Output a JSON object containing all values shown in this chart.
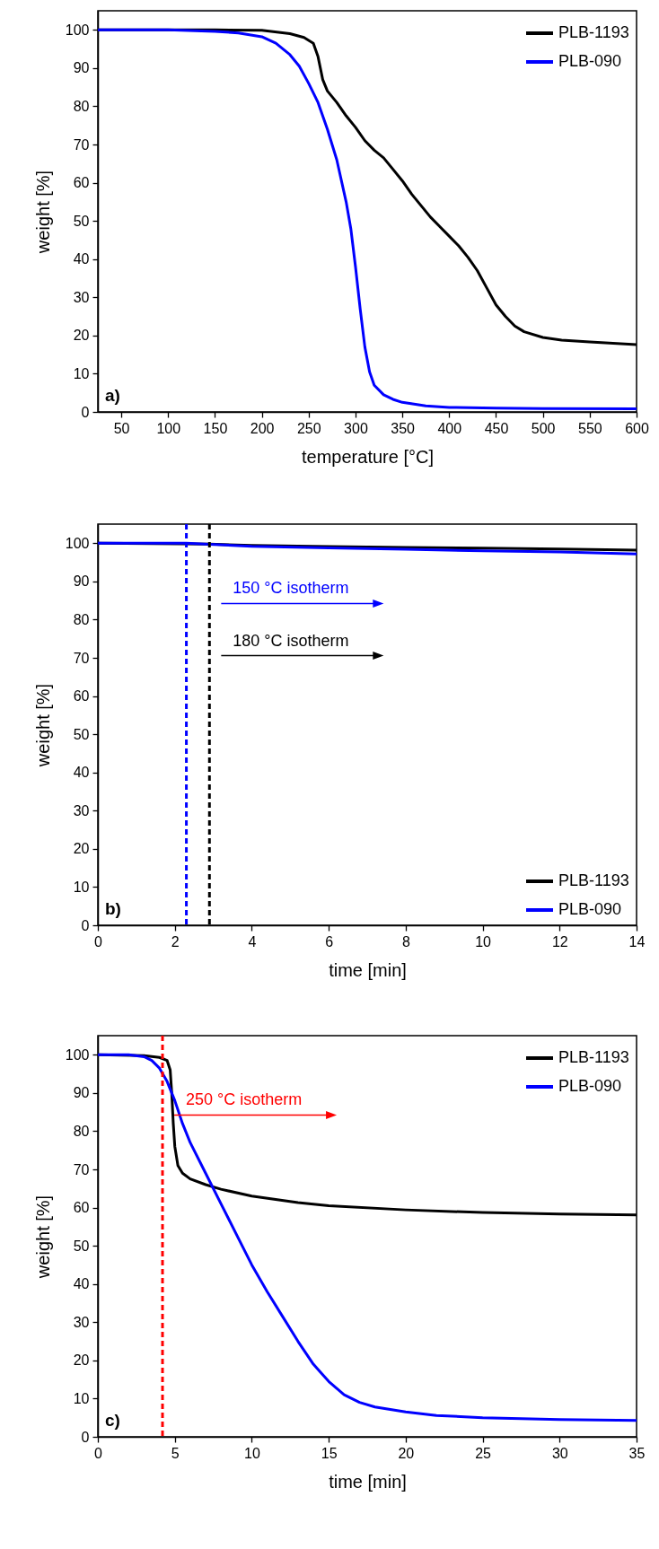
{
  "chart_data": [
    {
      "type": "line",
      "xlabel": "temperature [°C]",
      "ylabel": "weight [%]",
      "xlim": [
        25,
        600
      ],
      "ylim": [
        0,
        105
      ],
      "xticks": [
        50,
        100,
        150,
        200,
        250,
        300,
        350,
        400,
        450,
        500,
        550,
        600
      ],
      "yticks": [
        0,
        10,
        20,
        30,
        40,
        50,
        60,
        70,
        80,
        90,
        100
      ],
      "legend": "top right",
      "annotations": [
        "a)"
      ],
      "series": [
        {
          "name": "PLB-1193",
          "color": "#000000",
          "x": [
            25,
            150,
            200,
            230,
            245,
            255,
            260,
            265,
            270,
            280,
            290,
            300,
            310,
            320,
            330,
            340,
            350,
            360,
            370,
            380,
            390,
            400,
            410,
            420,
            430,
            440,
            450,
            460,
            470,
            480,
            500,
            520,
            550,
            600
          ],
          "values": [
            100,
            100,
            99.9,
            99,
            98,
            96.5,
            93,
            87,
            84,
            81,
            77.5,
            74.5,
            71,
            68.5,
            66.5,
            63.5,
            60.5,
            57,
            54,
            51,
            48.5,
            46,
            43.5,
            40.5,
            37,
            32.5,
            28,
            25,
            22.5,
            21,
            19.5,
            18.8,
            18.3,
            17.6
          ]
        },
        {
          "name": "PLB-090",
          "color": "#0000ff",
          "x": [
            25,
            100,
            150,
            175,
            200,
            215,
            230,
            240,
            250,
            260,
            270,
            280,
            290,
            295,
            300,
            305,
            310,
            315,
            320,
            330,
            340,
            350,
            375,
            400,
            450,
            500,
            600
          ],
          "values": [
            100,
            100,
            99.6,
            99.2,
            98.2,
            96.5,
            93.5,
            90.5,
            86,
            81,
            74,
            66,
            55,
            48,
            38,
            27,
            17,
            10.5,
            7,
            4.5,
            3.3,
            2.5,
            1.6,
            1.2,
            1,
            0.9,
            0.8
          ]
        }
      ]
    },
    {
      "type": "line",
      "xlabel": "time [min]",
      "ylabel": "weight [%]",
      "xlim": [
        0,
        14
      ],
      "ylim": [
        0,
        105
      ],
      "xticks": [
        0,
        2,
        4,
        6,
        8,
        10,
        12,
        14
      ],
      "yticks": [
        0,
        10,
        20,
        30,
        40,
        50,
        60,
        70,
        80,
        90,
        100
      ],
      "legend": "bottom right",
      "annotations": [
        "b)"
      ],
      "ref_lines": [
        {
          "axis": "x",
          "value": 2.3,
          "label": "150 °C isotherm",
          "color": "#0000ff",
          "line_style": "dashed"
        },
        {
          "axis": "x",
          "value": 2.9,
          "label": "180 °C isotherm",
          "color": "#000000",
          "line_style": "dashed"
        }
      ],
      "series": [
        {
          "name": "PLB-1193",
          "color": "#000000",
          "x": [
            0,
            2.9,
            4,
            6,
            8,
            10,
            12,
            14
          ],
          "values": [
            100,
            99.8,
            99.4,
            99.1,
            98.9,
            98.7,
            98.5,
            98.2
          ]
        },
        {
          "name": "PLB-090",
          "color": "#0000ff",
          "x": [
            0,
            2.3,
            2.9,
            4,
            6,
            8,
            10,
            12,
            14
          ],
          "values": [
            100,
            100,
            99.7,
            99.2,
            98.8,
            98.4,
            98,
            97.7,
            97.2
          ]
        }
      ]
    },
    {
      "type": "line",
      "xlabel": "time [min]",
      "ylabel": "weight [%]",
      "xlim": [
        0,
        35
      ],
      "ylim": [
        0,
        105
      ],
      "xticks": [
        0,
        5,
        10,
        15,
        20,
        25,
        30,
        35
      ],
      "yticks": [
        0,
        10,
        20,
        30,
        40,
        50,
        60,
        70,
        80,
        90,
        100
      ],
      "legend": "top right",
      "annotations": [
        "c)"
      ],
      "ref_lines": [
        {
          "axis": "x",
          "value": 4.2,
          "label": "250 °C isotherm",
          "color": "#ff0000",
          "line_style": "dashed"
        }
      ],
      "series": [
        {
          "name": "PLB-1193",
          "color": "#000000",
          "x": [
            0,
            3,
            4,
            4.5,
            4.7,
            4.8,
            4.9,
            5,
            5.2,
            5.5,
            6,
            7,
            8,
            10,
            13,
            15,
            20,
            25,
            30,
            35
          ],
          "values": [
            100,
            99.8,
            99.3,
            98.5,
            96,
            90,
            82,
            76,
            71,
            69,
            67.5,
            66,
            64.8,
            63,
            61.3,
            60.5,
            59.4,
            58.7,
            58.3,
            58.1
          ]
        },
        {
          "name": "PLB-090",
          "color": "#0000ff",
          "x": [
            0,
            2,
            3,
            3.5,
            4,
            4.5,
            5,
            5.5,
            6,
            7,
            8,
            9,
            10,
            11,
            12,
            13,
            14,
            15,
            16,
            17,
            18,
            20,
            22,
            25,
            30,
            35
          ],
          "values": [
            100,
            100,
            99.5,
            98.5,
            96.5,
            93,
            88,
            82,
            77,
            69,
            61,
            53,
            45,
            38,
            31.5,
            25,
            19,
            14.5,
            11,
            9,
            7.8,
            6.5,
            5.6,
            5,
            4.5,
            4.3
          ]
        }
      ]
    }
  ]
}
